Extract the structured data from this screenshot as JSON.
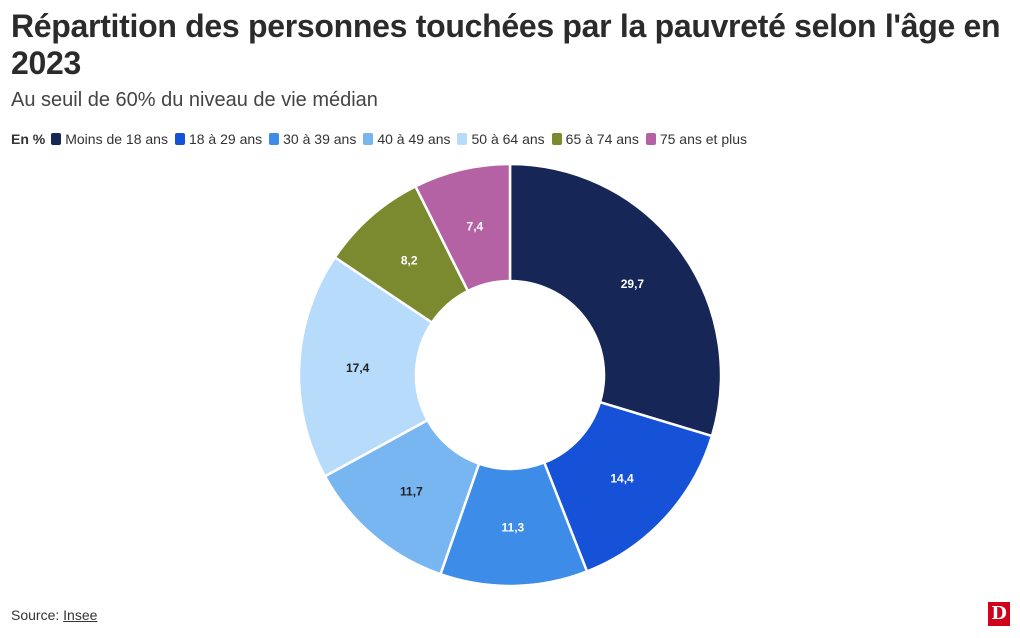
{
  "title": "Répartition des personnes touchées par la pauvreté selon l'âge en 2023",
  "subtitle": "Au seuil de 60% du niveau de vie médian",
  "legend_unit": "En %",
  "source_label": "Source: ",
  "source_link": "Insee",
  "logo_letter": "D",
  "chart_data": {
    "type": "pie",
    "variant": "donut",
    "unit": "%",
    "categories": [
      "Moins de 18 ans",
      "18 à 29 ans",
      "30 à 39 ans",
      "40 à 49 ans",
      "50 à 64 ans",
      "65 à 74 ans",
      "75 ans et plus"
    ],
    "values": [
      29.7,
      14.4,
      11.3,
      11.7,
      17.4,
      8.2,
      7.4
    ],
    "data_labels": [
      "29,7",
      "14,4",
      "11,3",
      "11,7",
      "17,4",
      "8,2",
      "7,4"
    ],
    "colors": [
      "#152657",
      "#1552d8",
      "#3d8ce8",
      "#78b6f2",
      "#b6dbfb",
      "#7b8a2e",
      "#b562a4"
    ],
    "label_colors": [
      "#ffffff",
      "#ffffff",
      "#ffffff",
      "#222222",
      "#222222",
      "#ffffff",
      "#ffffff"
    ],
    "legend_placement": "top-left",
    "start": "top, clockwise"
  }
}
